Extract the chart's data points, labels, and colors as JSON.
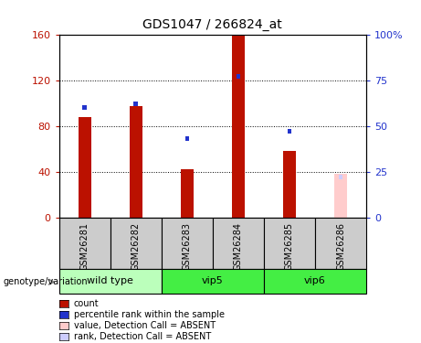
{
  "title": "GDS1047 / 266824_at",
  "samples": [
    "GSM26281",
    "GSM26282",
    "GSM26283",
    "GSM26284",
    "GSM26285",
    "GSM26286"
  ],
  "count_values": [
    88,
    97,
    42,
    160,
    58,
    38
  ],
  "rank_values": [
    60,
    62,
    43,
    77,
    47,
    0
  ],
  "is_absent": [
    false,
    false,
    false,
    false,
    false,
    true
  ],
  "absent_rank_value": 22,
  "ylim_left": [
    0,
    160
  ],
  "ylim_right": [
    0,
    100
  ],
  "yticks_left": [
    0,
    40,
    80,
    120,
    160
  ],
  "yticks_right": [
    0,
    25,
    50,
    75,
    100
  ],
  "ytick_labels_left": [
    "0",
    "40",
    "80",
    "120",
    "160"
  ],
  "ytick_labels_right": [
    "0",
    "25",
    "50",
    "75",
    "100%"
  ],
  "bar_width": 0.25,
  "rank_bar_width": 0.08,
  "count_color": "#bb1100",
  "rank_color": "#2233cc",
  "absent_count_color": "#ffcccc",
  "absent_rank_color": "#ccccff",
  "bg_label": "#cccccc",
  "bg_group_light": "#bbffbb",
  "bg_group_dark": "#44ee44",
  "group_positions": [
    {
      "name": "wild type",
      "start": 0,
      "end": 2,
      "color": "#bbffbb"
    },
    {
      "name": "vip5",
      "start": 2,
      "end": 4,
      "color": "#44ee44"
    },
    {
      "name": "vip6",
      "start": 4,
      "end": 6,
      "color": "#44ee44"
    }
  ],
  "legend_items": [
    {
      "label": "count",
      "color": "#bb1100"
    },
    {
      "label": "percentile rank within the sample",
      "color": "#2233cc"
    },
    {
      "label": "value, Detection Call = ABSENT",
      "color": "#ffcccc"
    },
    {
      "label": "rank, Detection Call = ABSENT",
      "color": "#ccccff"
    }
  ]
}
